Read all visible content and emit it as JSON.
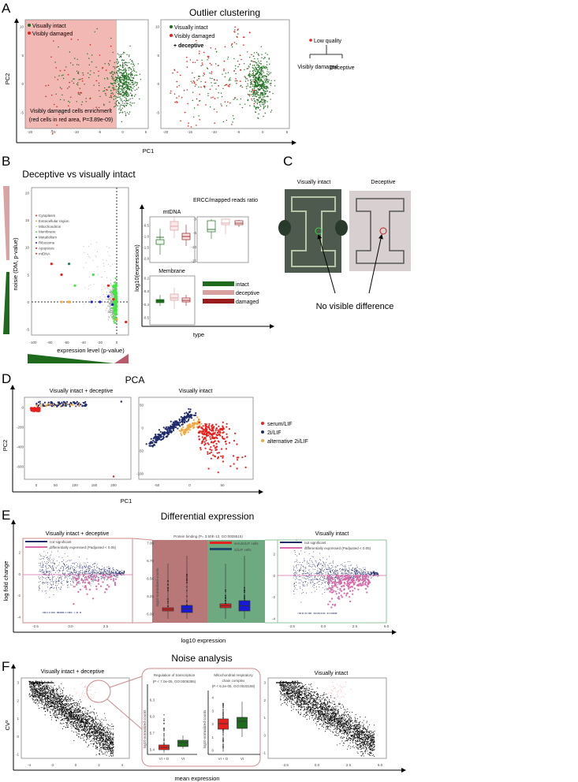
{
  "panels": {
    "A": "A",
    "B": "B",
    "C": "C",
    "D": "D",
    "E": "E",
    "F": "F"
  },
  "colors": {
    "intact": "#1e6b1e",
    "damaged": "#e8201c",
    "redArea": "#f2b8b4",
    "navy": "#1f2a6b",
    "pink": "#d96aa8",
    "orange": "#f0a840",
    "blue": "#1818d8"
  },
  "chart_data": [
    {
      "id": "A1",
      "type": "scatter",
      "title": "",
      "xlabel": "PC1",
      "ylabel": "PC2",
      "xlim": [
        -21,
        5
      ],
      "ylim": [
        -8,
        11
      ],
      "xticks": [
        "-20",
        "-15",
        "-10",
        "-5",
        "0",
        "5"
      ],
      "yticks": [
        "10",
        "5",
        "0",
        "-5"
      ],
      "legend": [
        "Visually intact",
        "Visibly damaged"
      ],
      "annotation": [
        "Visibly damaged cells enrichment",
        "(red cells in red area, P=3.89e-09)"
      ]
    },
    {
      "id": "A2",
      "type": "scatter",
      "title": "Outlier clustering",
      "xlim": [
        -21,
        5
      ],
      "ylim": [
        -8,
        11
      ],
      "xticks": [
        "-20",
        "-15",
        "-10",
        "-5",
        "0",
        "5"
      ],
      "yticks": [
        "10",
        "5",
        "0",
        "-5"
      ],
      "legend": [
        "Visually intact",
        "Visibly damaged",
        "+ deceptive"
      ]
    },
    {
      "id": "A3",
      "type": "tree",
      "root": "Low quality",
      "children": [
        "Visibly damaged",
        "Deceptive"
      ]
    },
    {
      "id": "B1",
      "type": "scatter",
      "title": "Deceptive vs visually intact",
      "xlabel": "expression level (p-value)",
      "ylabel": "noisie (DM, p-value)",
      "xlim": [
        -105,
        14
      ],
      "ylim": [
        -6,
        21
      ],
      "xticks": [
        "-100",
        "-80",
        "-60",
        "-40",
        "-20",
        "0"
      ],
      "yticks": [
        "20",
        "15",
        "10",
        "5",
        "0",
        "-5"
      ],
      "legend": [
        "Cytoplasm",
        "Extracellular region",
        "Mitochondrion",
        "Membrane",
        "Metabolism",
        "Ribosome",
        "Apoptosis",
        "mtDNA"
      ]
    },
    {
      "id": "B2",
      "type": "box",
      "ylabel": "log10(expression)",
      "xlabel": "type",
      "subplots": [
        {
          "title": "mtDNA",
          "yticks": [
            "-0.5",
            "-1.0",
            "-1.5",
            "-2.0"
          ],
          "medians": [
            -1.38,
            -0.76,
            -0.96
          ]
        },
        {
          "title": "ERCC/mapped reads ratio",
          "yticks": [
            "0",
            "-5",
            "-10",
            "-15"
          ],
          "medians": [
            -4,
            -1,
            -1.3
          ]
        },
        {
          "title": "Membrane",
          "yticks": [
            "-0.2",
            "-0.3",
            "-0.4",
            "-0.5"
          ],
          "medians": [
            -0.4,
            -0.37,
            -0.38
          ]
        }
      ],
      "legend": [
        "intact",
        "deceptive",
        "damaged"
      ]
    },
    {
      "id": "D1",
      "type": "scatter",
      "title": "PCA",
      "subtitle": "Visually intact + deceptive",
      "xlabel": "PC1",
      "ylabel": "PC2",
      "xlim": [
        -30,
        240
      ],
      "ylim": [
        -740,
        80
      ],
      "xticks": [
        "0",
        "50",
        "100",
        "150",
        "200"
      ],
      "yticks": [
        "0",
        "-200",
        "-400",
        "-600"
      ]
    },
    {
      "id": "D2",
      "type": "scatter",
      "subtitle": "Visually intact",
      "xlim": [
        -70,
        100
      ],
      "ylim": [
        -110,
        65
      ],
      "xticks": [
        "-50",
        "0",
        "50"
      ],
      "yticks": [
        "50",
        "0",
        "-50",
        "-100"
      ],
      "legend": [
        "serum/LIF",
        "2i/LIF",
        "alternative 2i/LIF"
      ]
    },
    {
      "id": "E1",
      "type": "scatter",
      "title": "Differential expression",
      "subtitle": "Visually intact + deceptive",
      "xlabel": "log10 expression",
      "ylabel": "log fold change",
      "xticks": [
        "-2.5",
        "0.0",
        "2.5"
      ],
      "yticks": [
        "2",
        "0",
        "-2",
        "-4"
      ],
      "legend": [
        "not significant",
        "differentially expressed (Padjusted < 0.05)"
      ]
    },
    {
      "id": "E2",
      "type": "box",
      "title": "Protein binding (P= 3.50E-13, GO:0005515)",
      "ylabel": "log10 normalized counts",
      "ylim": [
        5.9,
        7.05
      ],
      "yticks": [
        "7.00",
        "6.75",
        "6.50",
        "6.25",
        "6.00"
      ],
      "legend": [
        "serum/LIF cells",
        "2i/LIF cells"
      ],
      "medians": [
        5.98,
        6.0,
        6.07,
        6.09
      ]
    },
    {
      "id": "E3",
      "type": "scatter",
      "subtitle": "Visually intact",
      "xticks": [
        "-2.5",
        "0.0",
        "2.5",
        "5.0"
      ],
      "yticks": [
        "2",
        "0",
        "-2",
        "-4"
      ],
      "legend": [
        "not significant",
        "differentially expressed (Padjusted < 0.05)"
      ]
    },
    {
      "id": "F1",
      "type": "scatter",
      "title": "Noise analysis",
      "subtitle": "Visually intact + deceptive",
      "xlabel": "mean expression",
      "ylabel": "CV²",
      "xticks": [
        "-4",
        "-2",
        "0",
        "2",
        "4"
      ],
      "yticks": [
        "3",
        "2",
        "1",
        "0",
        "-1"
      ]
    },
    {
      "id": "F2",
      "type": "box",
      "title": "Regulation of transcription",
      "subtitle": "(P < 7.0e-05, GO:0006355)",
      "ylabel": "log10 normalized counts",
      "categories": [
        "VI + D",
        "VI"
      ],
      "yticks": [
        "6.3",
        "6.0",
        "5.7",
        "5.4"
      ],
      "medians": [
        5.57,
        5.62
      ]
    },
    {
      "id": "F3",
      "type": "box",
      "title": "Mitochondrial respiratory",
      "title2": "chain complex",
      "subtitle": "(P < 6.2e-05, GO:0033108)",
      "ylabel": "log10 normalized counts",
      "categories": [
        "VI + D",
        "VI"
      ],
      "yticks": [
        "4",
        "3",
        "2",
        "1",
        "0"
      ],
      "medians": [
        2.5,
        2.6
      ]
    },
    {
      "id": "F4",
      "type": "scatter",
      "subtitle": "Visually intact",
      "xticks": [
        "-2.5",
        "0.0",
        "2.5",
        "5.0"
      ],
      "yticks": [
        "3",
        "2",
        "1",
        "0",
        "-1"
      ]
    }
  ],
  "C": {
    "left": "Visually intact",
    "right": "Deceptive",
    "caption": "No visible difference"
  }
}
